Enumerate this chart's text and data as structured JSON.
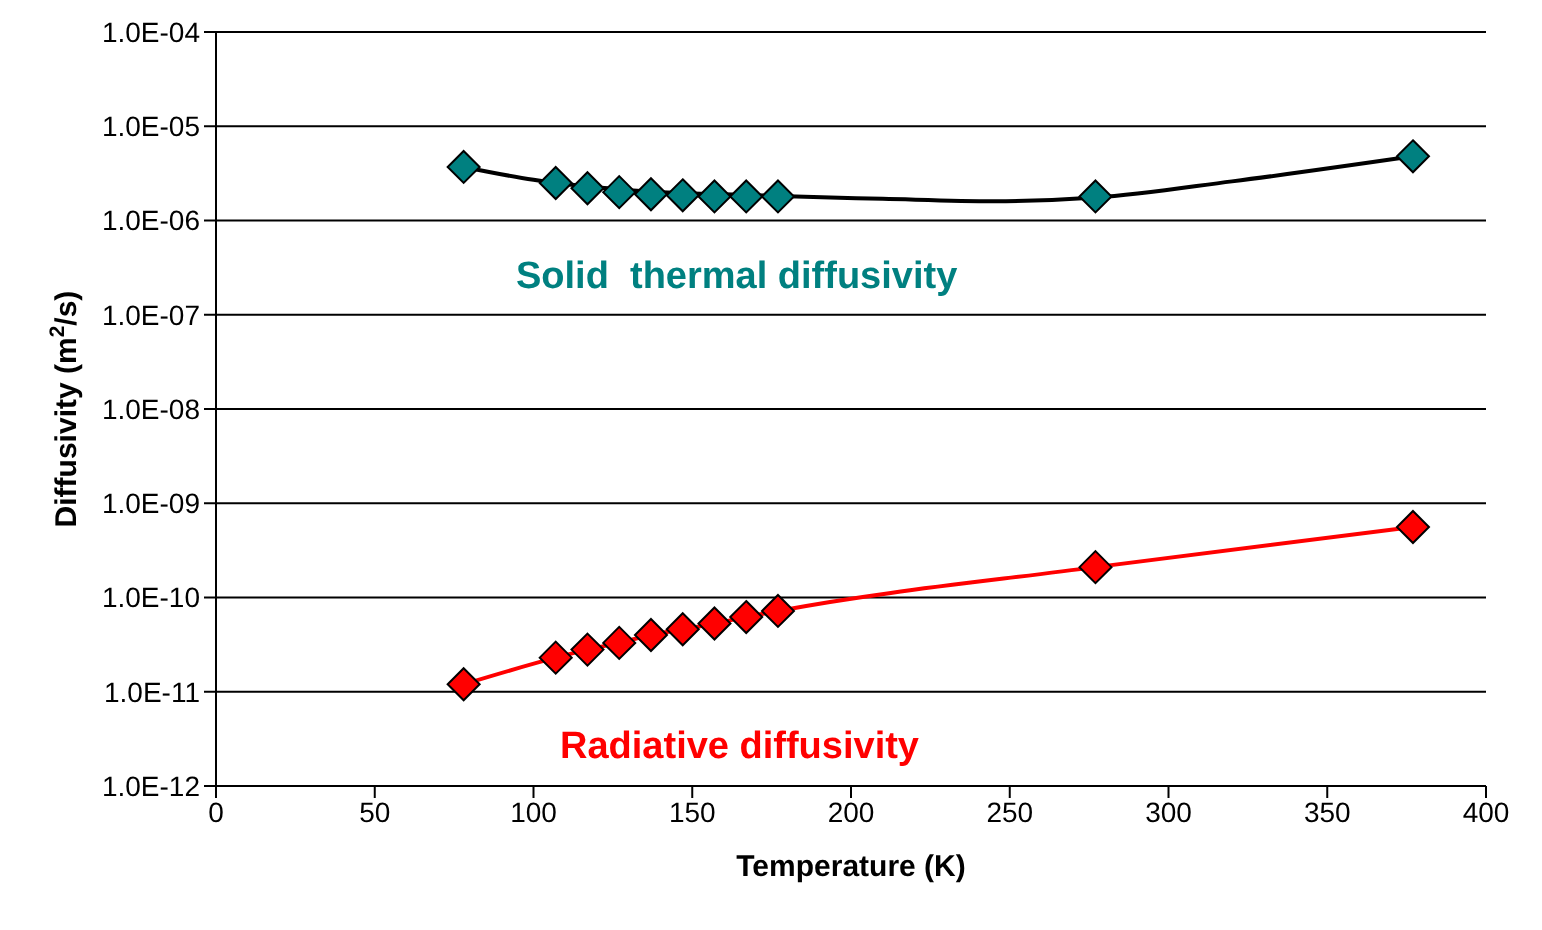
{
  "chart_data": {
    "type": "line",
    "xlabel": "Temperature (K)",
    "ylabel": "Diffusivity (m$^{2}$/s)",
    "log": "y",
    "grid": "y",
    "legend": false,
    "marker": "diamond",
    "xlim": [
      0,
      400
    ],
    "xticks": [
      0,
      50,
      100,
      150,
      200,
      250,
      300,
      350,
      400
    ],
    "ylim": [
      1e-12,
      0.0001
    ],
    "yticks": [
      {
        "value": 1e-12,
        "label": "1.0E-12"
      },
      {
        "value": 1e-11,
        "label": "1.0E-11"
      },
      {
        "value": 1e-10,
        "label": "1.0E-10"
      },
      {
        "value": 1e-09,
        "label": "1.0E-09"
      },
      {
        "value": 1e-08,
        "label": "1.0E-08"
      },
      {
        "value": 1e-07,
        "label": "1.0E-07"
      },
      {
        "value": 1e-06,
        "label": "1.0E-06"
      },
      {
        "value": 1e-05,
        "label": "1.0E-05"
      },
      {
        "value": 0.0001,
        "label": "1.0E-04"
      }
    ],
    "series": [
      {
        "type": "scatter",
        "color": "#008080",
        "x": [
          78,
          107,
          117,
          127,
          137,
          147,
          157,
          167,
          177,
          277,
          377
        ],
        "values": [
          3.7e-06,
          2.5e-06,
          2.2e-06,
          2e-06,
          1.9e-06,
          1.85e-06,
          1.8e-06,
          1.8e-06,
          1.8e-06,
          1.8e-06,
          4.8e-06
        ]
      },
      {
        "type": "line",
        "color": "#000000",
        "marker": "none",
        "x": [
          78,
          100,
          130,
          170,
          210,
          245,
          277,
          320,
          377
        ],
        "values": [
          3.7e-06,
          2.7e-06,
          2.1e-06,
          1.85e-06,
          1.7e-06,
          1.6e-06,
          1.75e-06,
          2.6e-06,
          4.8e-06
        ]
      },
      {
        "color": "#ff0000",
        "x": [
          78,
          107,
          117,
          127,
          137,
          147,
          157,
          167,
          177,
          277,
          377
        ],
        "values": [
          1.2e-11,
          2.3e-11,
          2.8e-11,
          3.3e-11,
          4e-11,
          4.6e-11,
          5.3e-11,
          6.2e-11,
          7.2e-11,
          2.1e-10,
          5.6e-10
        ]
      }
    ],
    "annotations": [
      "Solid  thermal diffusivity",
      "Radiative diffusivity"
    ]
  }
}
